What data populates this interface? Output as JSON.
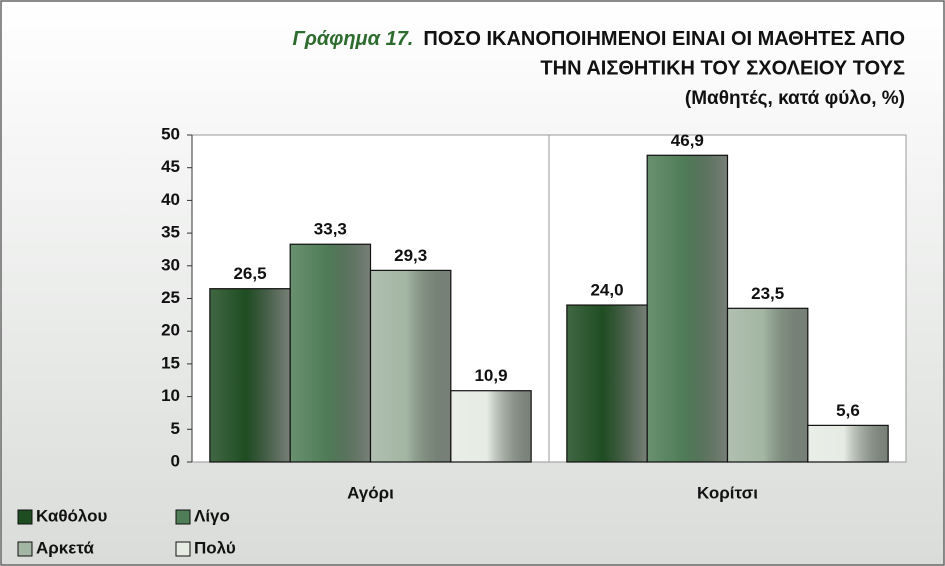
{
  "chart_data": {
    "type": "bar",
    "chart_number": "Γράφημα 17.",
    "title": [
      "ΠΟΣΟ ΙΚΑΝΟΠΟΙΗΜΕΝΟΙ ΕΙΝΑΙ ΟΙ ΜΑΘΗΤΕΣ ΑΠΟ",
      "ΤΗΝ ΑΙΣΘΗΤΙΚΗ ΤΟΥ ΣΧΟΛΕΙΟΥ ΤΟΥΣ"
    ],
    "subtitle": "(Μαθητές, κατά φύλο, %)",
    "categories": [
      "Αγόρι",
      "Κορίτσι"
    ],
    "series": [
      {
        "name": "Καθόλου",
        "color": "#1f4d22",
        "values": [
          26.5,
          24.0
        ],
        "value_labels": [
          "26,5",
          "24,0"
        ]
      },
      {
        "name": "Λίγο",
        "color": "#4f7d57",
        "values": [
          33.3,
          46.9
        ],
        "value_labels": [
          "33,3",
          "46,9"
        ]
      },
      {
        "name": "Αρκετά",
        "color": "#a3b5a3",
        "values": [
          29.3,
          23.5
        ],
        "value_labels": [
          "29,3",
          "23,5"
        ]
      },
      {
        "name": "Πολύ",
        "color": "#e6ebe4",
        "values": [
          10.9,
          5.6
        ],
        "value_labels": [
          "10,9",
          "5,6"
        ]
      }
    ],
    "ylim": [
      0,
      50
    ],
    "yticks": [
      0,
      5,
      10,
      15,
      20,
      25,
      30,
      35,
      40,
      45,
      50
    ],
    "grid": false,
    "legend": "bottom-left"
  }
}
